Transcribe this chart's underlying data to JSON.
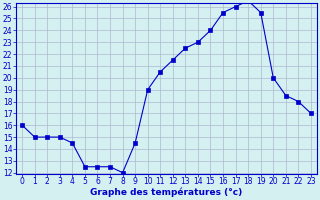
{
  "hours": [
    0,
    1,
    2,
    3,
    4,
    5,
    6,
    7,
    8,
    9,
    10,
    11,
    12,
    13,
    14,
    15,
    16,
    17,
    18,
    19,
    20,
    21,
    22,
    23
  ],
  "temps": [
    16,
    15,
    15,
    15,
    14.5,
    12.5,
    12.5,
    12.5,
    12,
    14.5,
    19,
    20.5,
    21.5,
    22.5,
    23,
    24,
    25.5,
    26,
    26.5,
    25.5,
    20,
    18.5,
    18,
    17
  ],
  "line_color": "#0000cc",
  "bg_color": "#d4f0f0",
  "grid_color": "#b0b8d0",
  "xlabel": "Graphe des températures (°c)",
  "ylim": [
    12,
    26
  ],
  "xlim": [
    -0.5,
    23.5
  ],
  "yticks": [
    12,
    13,
    14,
    15,
    16,
    17,
    18,
    19,
    20,
    21,
    22,
    23,
    24,
    25,
    26
  ],
  "xticks": [
    0,
    1,
    2,
    3,
    4,
    5,
    6,
    7,
    8,
    9,
    10,
    11,
    12,
    13,
    14,
    15,
    16,
    17,
    18,
    19,
    20,
    21,
    22,
    23
  ],
  "axis_color": "#0000cc",
  "marker_size": 2.5,
  "tick_fontsize": 5.5,
  "xlabel_fontsize": 6.5
}
